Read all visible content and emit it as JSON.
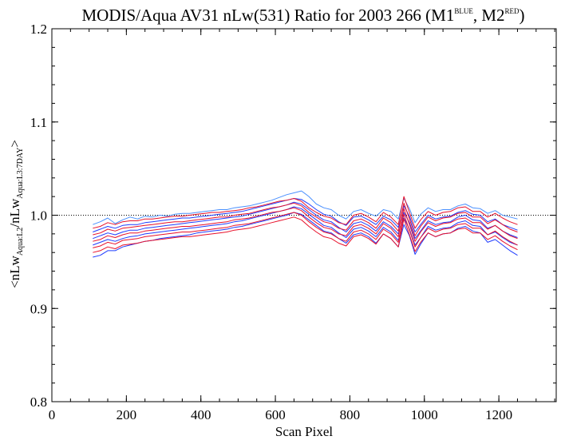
{
  "chart_data": {
    "type": "line",
    "title": {
      "main": "MODIS/Aqua AV31 nLw(531) Ratio for 2003 266 (M1",
      "sup1": "BLUE",
      "mid": ", M2",
      "sup2": "RED",
      "end": ")"
    },
    "xlabel": "Scan Pixel",
    "ylabel": {
      "part1": "<nLw",
      "sub1": "Aqua:L2",
      "part2": "/nLw",
      "sub2": "Aqua:L3:7DAY",
      "part3": ">"
    },
    "xlim": [
      0,
      1354
    ],
    "ylim": [
      0.8,
      1.2
    ],
    "x_ticks": [
      0,
      200,
      400,
      600,
      800,
      1000,
      1200
    ],
    "x_tick_labels": [
      "0",
      "200",
      "400",
      "600",
      "800",
      "1000",
      "1200"
    ],
    "y_ticks": [
      0.8,
      0.9,
      1.0,
      1.1,
      1.2
    ],
    "y_tick_labels": [
      "0.8",
      "0.9",
      "1.0",
      "1.1",
      "1.2"
    ],
    "reference_line": {
      "y": 1.0,
      "style": "dotted"
    },
    "colors": {
      "blue_series": "#1f3cff",
      "blue_light": "#4a90ff",
      "red_series": "#e8102a"
    },
    "x": [
      110,
      130,
      150,
      170,
      190,
      210,
      230,
      250,
      270,
      290,
      310,
      330,
      350,
      370,
      390,
      410,
      430,
      450,
      470,
      490,
      510,
      530,
      550,
      570,
      590,
      610,
      630,
      650,
      670,
      690,
      710,
      730,
      750,
      770,
      790,
      810,
      830,
      850,
      870,
      890,
      910,
      930,
      945,
      960,
      975,
      990,
      1010,
      1030,
      1050,
      1070,
      1090,
      1110,
      1130,
      1150,
      1170,
      1190,
      1210,
      1230,
      1250
    ],
    "series": [
      {
        "color": "#4a90ff",
        "values": [
          0.99,
          0.993,
          0.997,
          0.991,
          0.995,
          0.998,
          0.996,
          0.999,
          0.998,
          1.0,
          0.999,
          1.001,
          1.002,
          1.002,
          1.003,
          1.004,
          1.005,
          1.006,
          1.006,
          1.008,
          1.009,
          1.01,
          1.012,
          1.014,
          1.016,
          1.019,
          1.022,
          1.024,
          1.026,
          1.02,
          1.012,
          1.008,
          1.006,
          1.0,
          0.996,
          1.004,
          1.006,
          1.002,
          0.999,
          1.006,
          1.004,
          0.996,
          1.018,
          1.007,
          0.992,
          1.001,
          1.008,
          1.004,
          1.006,
          1.006,
          1.01,
          1.012,
          1.008,
          1.007,
          1.002,
          1.005,
          1.0,
          0.998,
          0.996
        ]
      },
      {
        "color": "#1f3cff",
        "values": [
          0.982,
          0.985,
          0.988,
          0.986,
          0.989,
          0.99,
          0.99,
          0.992,
          0.993,
          0.994,
          0.995,
          0.996,
          0.997,
          0.997,
          0.998,
          0.999,
          1.0,
          1.001,
          1.002,
          1.003,
          1.004,
          1.006,
          1.008,
          1.01,
          1.012,
          1.014,
          1.016,
          1.018,
          1.017,
          1.012,
          1.006,
          1.001,
          0.999,
          0.993,
          0.989,
          0.998,
          0.999,
          0.995,
          0.99,
          0.999,
          0.995,
          0.987,
          1.01,
          0.999,
          0.982,
          0.99,
          1.0,
          0.996,
          0.998,
          0.999,
          1.003,
          1.005,
          1.001,
          1.0,
          0.993,
          0.996,
          0.99,
          0.987,
          0.984
        ]
      },
      {
        "color": "#1f3cff",
        "values": [
          0.975,
          0.978,
          0.981,
          0.979,
          0.982,
          0.984,
          0.984,
          0.986,
          0.987,
          0.988,
          0.989,
          0.99,
          0.991,
          0.992,
          0.993,
          0.994,
          0.995,
          0.996,
          0.997,
          0.998,
          0.999,
          1.001,
          1.003,
          1.005,
          1.007,
          1.009,
          1.011,
          1.014,
          1.012,
          1.006,
          1.0,
          0.995,
          0.993,
          0.987,
          0.982,
          0.991,
          0.993,
          0.989,
          0.983,
          0.993,
          0.988,
          0.98,
          1.003,
          0.992,
          0.975,
          0.983,
          0.994,
          0.99,
          0.992,
          0.993,
          0.998,
          1.0,
          0.995,
          0.994,
          0.986,
          0.989,
          0.983,
          0.979,
          0.976
        ]
      },
      {
        "color": "#1f3cff",
        "values": [
          0.968,
          0.971,
          0.974,
          0.972,
          0.975,
          0.977,
          0.978,
          0.98,
          0.981,
          0.982,
          0.983,
          0.984,
          0.985,
          0.986,
          0.987,
          0.988,
          0.989,
          0.99,
          0.991,
          0.993,
          0.994,
          0.996,
          0.998,
          1.0,
          1.002,
          1.004,
          1.006,
          1.009,
          1.007,
          1.001,
          0.995,
          0.989,
          0.987,
          0.981,
          0.976,
          0.985,
          0.987,
          0.983,
          0.977,
          0.987,
          0.982,
          0.973,
          0.997,
          0.985,
          0.968,
          0.976,
          0.988,
          0.984,
          0.986,
          0.987,
          0.992,
          0.994,
          0.989,
          0.988,
          0.979,
          0.982,
          0.976,
          0.971,
          0.968
        ]
      },
      {
        "color": "#1f3cff",
        "values": [
          0.955,
          0.957,
          0.962,
          0.962,
          0.966,
          0.968,
          0.97,
          0.972,
          0.973,
          0.975,
          0.976,
          0.977,
          0.978,
          0.979,
          0.981,
          0.982,
          0.983,
          0.984,
          0.985,
          0.987,
          0.988,
          0.99,
          0.992,
          0.994,
          0.996,
          0.998,
          1.0,
          1.003,
          1.001,
          0.995,
          0.989,
          0.983,
          0.981,
          0.975,
          0.97,
          0.979,
          0.981,
          0.977,
          0.97,
          0.98,
          0.975,
          0.966,
          0.99,
          0.978,
          0.958,
          0.969,
          0.981,
          0.977,
          0.98,
          0.981,
          0.986,
          0.988,
          0.983,
          0.981,
          0.971,
          0.974,
          0.968,
          0.962,
          0.957
        ]
      },
      {
        "color": "#e8102a",
        "values": [
          0.986,
          0.988,
          0.992,
          0.99,
          0.993,
          0.994,
          0.994,
          0.996,
          0.996,
          0.997,
          0.998,
          0.999,
          0.999,
          1.0,
          1.001,
          1.002,
          1.003,
          1.003,
          1.004,
          1.005,
          1.006,
          1.008,
          1.009,
          1.011,
          1.013,
          1.015,
          1.016,
          1.018,
          1.015,
          1.008,
          1.003,
          0.999,
          0.997,
          0.992,
          0.99,
          1.0,
          1.002,
          0.998,
          0.993,
          1.003,
          0.998,
          0.99,
          1.02,
          1.003,
          0.986,
          0.995,
          1.004,
          1.0,
          1.003,
          1.004,
          1.008,
          1.009,
          1.004,
          1.004,
          0.998,
          1.002,
          0.997,
          0.993,
          0.99
        ]
      },
      {
        "color": "#e8102a",
        "values": [
          0.979,
          0.981,
          0.985,
          0.983,
          0.986,
          0.987,
          0.988,
          0.989,
          0.99,
          0.991,
          0.992,
          0.993,
          0.993,
          0.994,
          0.995,
          0.996,
          0.997,
          0.998,
          0.998,
          1.0,
          1.001,
          1.002,
          1.004,
          1.006,
          1.008,
          1.009,
          1.011,
          1.013,
          1.01,
          1.003,
          0.998,
          0.993,
          0.991,
          0.986,
          0.984,
          0.994,
          0.996,
          0.992,
          0.986,
          0.997,
          0.992,
          0.983,
          1.013,
          0.996,
          0.978,
          0.988,
          0.998,
          0.994,
          0.997,
          0.998,
          1.002,
          1.003,
          0.998,
          0.998,
          0.991,
          0.995,
          0.99,
          0.985,
          0.982
        ]
      },
      {
        "color": "#e8102a",
        "values": [
          0.972,
          0.974,
          0.978,
          0.976,
          0.979,
          0.981,
          0.981,
          0.983,
          0.984,
          0.985,
          0.986,
          0.987,
          0.988,
          0.988,
          0.989,
          0.99,
          0.991,
          0.992,
          0.993,
          0.995,
          0.996,
          0.997,
          0.999,
          1.001,
          1.003,
          1.004,
          1.006,
          1.008,
          1.005,
          0.998,
          0.992,
          0.987,
          0.985,
          0.98,
          0.978,
          0.988,
          0.99,
          0.986,
          0.98,
          0.991,
          0.986,
          0.977,
          1.007,
          0.99,
          0.972,
          0.982,
          0.992,
          0.988,
          0.991,
          0.992,
          0.996,
          0.997,
          0.992,
          0.992,
          0.985,
          0.989,
          0.983,
          0.978,
          0.975
        ]
      },
      {
        "color": "#e8102a",
        "values": [
          0.965,
          0.967,
          0.971,
          0.969,
          0.973,
          0.974,
          0.975,
          0.977,
          0.978,
          0.979,
          0.98,
          0.981,
          0.982,
          0.982,
          0.983,
          0.984,
          0.985,
          0.986,
          0.987,
          0.989,
          0.99,
          0.991,
          0.993,
          0.995,
          0.997,
          0.999,
          1.001,
          1.003,
          1.0,
          0.993,
          0.987,
          0.982,
          0.98,
          0.975,
          0.972,
          0.982,
          0.984,
          0.98,
          0.974,
          0.985,
          0.98,
          0.971,
          1.001,
          0.984,
          0.966,
          0.976,
          0.986,
          0.982,
          0.985,
          0.986,
          0.99,
          0.991,
          0.986,
          0.986,
          0.979,
          0.983,
          0.977,
          0.972,
          0.968
        ]
      },
      {
        "color": "#e8102a",
        "values": [
          0.96,
          0.962,
          0.966,
          0.964,
          0.968,
          0.969,
          0.97,
          0.972,
          0.973,
          0.974,
          0.975,
          0.976,
          0.977,
          0.977,
          0.978,
          0.979,
          0.98,
          0.981,
          0.982,
          0.984,
          0.985,
          0.986,
          0.988,
          0.99,
          0.992,
          0.994,
          0.996,
          0.998,
          0.995,
          0.988,
          0.982,
          0.977,
          0.975,
          0.97,
          0.967,
          0.977,
          0.979,
          0.975,
          0.969,
          0.98,
          0.975,
          0.966,
          0.996,
          0.979,
          0.961,
          0.971,
          0.981,
          0.977,
          0.98,
          0.981,
          0.985,
          0.986,
          0.981,
          0.981,
          0.974,
          0.978,
          0.972,
          0.967,
          0.963
        ]
      }
    ]
  }
}
